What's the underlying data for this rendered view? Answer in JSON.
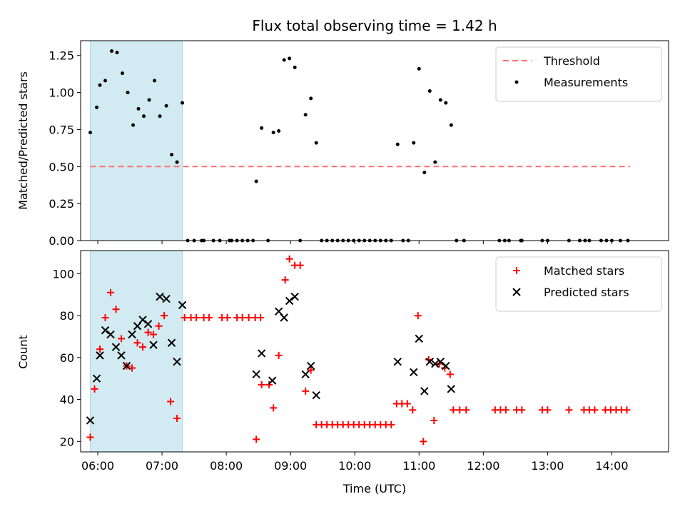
{
  "chart_data": {
    "title": "Flux total observing time = 1.42 h",
    "xlabel": "Time (UTC)",
    "x_ticks": [
      "06:00",
      "07:00",
      "08:00",
      "09:00",
      "10:00",
      "11:00",
      "12:00",
      "13:00",
      "14:00"
    ],
    "x_range": [
      "05:44",
      "14:53"
    ],
    "shaded_interval": [
      "05:53",
      "07:19"
    ],
    "shade_color": "#add8e6",
    "panels": [
      {
        "type": "scatter",
        "ylabel": "Matched/Predicted stars",
        "ylim": [
          0,
          1.35
        ],
        "y_ticks": [
          "0.00",
          "0.25",
          "0.50",
          "0.75",
          "1.00",
          "1.25"
        ],
        "legend_position": "upper right",
        "threshold": {
          "name": "Threshold",
          "value": 0.5,
          "x_start": "05:53",
          "x_end": "14:17",
          "color": "#ff7070"
        },
        "series": [
          {
            "name": "Measurements",
            "color": "#000000",
            "marker": "dot",
            "points": [
              [
                "05:53",
                0.73
              ],
              [
                "05:59",
                0.9
              ],
              [
                "06:02",
                1.05
              ],
              [
                "06:07",
                1.08
              ],
              [
                "06:13",
                1.28
              ],
              [
                "06:18",
                1.27
              ],
              [
                "06:23",
                1.13
              ],
              [
                "06:28",
                1.0
              ],
              [
                "06:33",
                0.78
              ],
              [
                "06:38",
                0.89
              ],
              [
                "06:43",
                0.84
              ],
              [
                "06:48",
                0.95
              ],
              [
                "06:53",
                1.08
              ],
              [
                "06:58",
                0.84
              ],
              [
                "07:04",
                0.91
              ],
              [
                "07:09",
                0.58
              ],
              [
                "07:14",
                0.53
              ],
              [
                "07:19",
                0.93
              ],
              [
                "07:24",
                0
              ],
              [
                "07:30",
                0
              ],
              [
                "07:37",
                0
              ],
              [
                "07:39",
                0
              ],
              [
                "07:48",
                0
              ],
              [
                "07:54",
                0
              ],
              [
                "08:03",
                0
              ],
              [
                "08:05",
                0
              ],
              [
                "08:10",
                0
              ],
              [
                "08:15",
                0
              ],
              [
                "08:20",
                0
              ],
              [
                "08:25",
                0
              ],
              [
                "08:28",
                0.4
              ],
              [
                "08:33",
                0.76
              ],
              [
                "08:39",
                0
              ],
              [
                "08:44",
                0.73
              ],
              [
                "08:49",
                0.74
              ],
              [
                "08:54",
                1.22
              ],
              [
                "08:59",
                1.23
              ],
              [
                "09:04",
                1.17
              ],
              [
                "09:09",
                0
              ],
              [
                "09:14",
                0.85
              ],
              [
                "09:19",
                0.96
              ],
              [
                "09:24",
                0.66
              ],
              [
                "09:29",
                0
              ],
              [
                "09:34",
                0
              ],
              [
                "09:39",
                0
              ],
              [
                "09:44",
                0
              ],
              [
                "09:49",
                0
              ],
              [
                "09:54",
                0
              ],
              [
                "09:59",
                0
              ],
              [
                "10:04",
                0
              ],
              [
                "10:09",
                0
              ],
              [
                "10:14",
                0
              ],
              [
                "10:19",
                0
              ],
              [
                "10:24",
                0
              ],
              [
                "10:29",
                0
              ],
              [
                "10:34",
                0
              ],
              [
                "10:40",
                0.65
              ],
              [
                "10:45",
                0
              ],
              [
                "10:50",
                0
              ],
              [
                "10:55",
                0.66
              ],
              [
                "11:00",
                1.16
              ],
              [
                "11:05",
                0.46
              ],
              [
                "11:10",
                1.01
              ],
              [
                "11:15",
                0.53
              ],
              [
                "11:20",
                0.95
              ],
              [
                "11:25",
                0.93
              ],
              [
                "11:30",
                0.78
              ],
              [
                "11:35",
                0
              ],
              [
                "11:42",
                0
              ],
              [
                "12:15",
                0
              ],
              [
                "12:20",
                0
              ],
              [
                "12:24",
                0
              ],
              [
                "12:35",
                0
              ],
              [
                "12:36",
                0
              ],
              [
                "12:55",
                0
              ],
              [
                "13:00",
                0
              ],
              [
                "13:20",
                0
              ],
              [
                "13:30",
                0
              ],
              [
                "13:35",
                0
              ],
              [
                "13:39",
                0
              ],
              [
                "13:50",
                0
              ],
              [
                "13:55",
                0
              ],
              [
                "14:00",
                0
              ],
              [
                "14:08",
                0
              ],
              [
                "14:15",
                0
              ]
            ]
          }
        ]
      },
      {
        "type": "scatter",
        "ylabel": "Count",
        "ylim": [
          15,
          111
        ],
        "y_ticks": [
          "20",
          "40",
          "60",
          "80",
          "100"
        ],
        "legend_position": "upper right",
        "series": [
          {
            "name": "Matched stars",
            "color": "#ff0000",
            "marker": "plus",
            "points": [
              [
                "05:53",
                22
              ],
              [
                "05:57",
                45
              ],
              [
                "06:02",
                64
              ],
              [
                "06:07",
                79
              ],
              [
                "06:12",
                91
              ],
              [
                "06:17",
                83
              ],
              [
                "06:22",
                69
              ],
              [
                "06:27",
                56
              ],
              [
                "06:32",
                55
              ],
              [
                "06:37",
                67
              ],
              [
                "06:42",
                65
              ],
              [
                "06:47",
                72
              ],
              [
                "06:52",
                71
              ],
              [
                "06:57",
                75
              ],
              [
                "07:02",
                80
              ],
              [
                "07:08",
                39
              ],
              [
                "07:14",
                31
              ],
              [
                "07:21",
                79
              ],
              [
                "07:27",
                79
              ],
              [
                "07:32",
                79
              ],
              [
                "07:39",
                79
              ],
              [
                "07:44",
                79
              ],
              [
                "07:56",
                79
              ],
              [
                "08:01",
                79
              ],
              [
                "08:10",
                79
              ],
              [
                "08:15",
                79
              ],
              [
                "08:21",
                79
              ],
              [
                "08:27",
                79
              ],
              [
                "08:32",
                79
              ],
              [
                "08:28",
                21
              ],
              [
                "08:33",
                47
              ],
              [
                "08:40",
                47
              ],
              [
                "08:44",
                36
              ],
              [
                "08:49",
                61
              ],
              [
                "08:55",
                97
              ],
              [
                "08:59",
                107
              ],
              [
                "09:04",
                104
              ],
              [
                "09:09",
                104
              ],
              [
                "09:14",
                44
              ],
              [
                "09:19",
                54
              ],
              [
                "09:24",
                28
              ],
              [
                "09:29",
                28
              ],
              [
                "09:34",
                28
              ],
              [
                "09:39",
                28
              ],
              [
                "09:44",
                28
              ],
              [
                "09:49",
                28
              ],
              [
                "09:54",
                28
              ],
              [
                "09:59",
                28
              ],
              [
                "10:04",
                28
              ],
              [
                "10:09",
                28
              ],
              [
                "10:14",
                28
              ],
              [
                "10:19",
                28
              ],
              [
                "10:24",
                28
              ],
              [
                "10:29",
                28
              ],
              [
                "10:34",
                28
              ],
              [
                "10:39",
                38
              ],
              [
                "10:44",
                38
              ],
              [
                "10:49",
                38
              ],
              [
                "10:54",
                35
              ],
              [
                "10:59",
                80
              ],
              [
                "11:04",
                20
              ],
              [
                "11:09",
                59
              ],
              [
                "11:14",
                30
              ],
              [
                "11:19",
                57
              ],
              [
                "11:24",
                55
              ],
              [
                "11:29",
                52
              ],
              [
                "11:32",
                35
              ],
              [
                "11:38",
                35
              ],
              [
                "11:44",
                35
              ],
              [
                "12:11",
                35
              ],
              [
                "12:16",
                35
              ],
              [
                "12:21",
                35
              ],
              [
                "12:31",
                35
              ],
              [
                "12:36",
                35
              ],
              [
                "12:55",
                35
              ],
              [
                "13:00",
                35
              ],
              [
                "13:20",
                35
              ],
              [
                "13:34",
                35
              ],
              [
                "13:39",
                35
              ],
              [
                "13:44",
                35
              ],
              [
                "13:54",
                35
              ],
              [
                "13:59",
                35
              ],
              [
                "14:04",
                35
              ],
              [
                "14:09",
                35
              ],
              [
                "14:14",
                35
              ]
            ]
          },
          {
            "name": "Predicted stars",
            "color": "#000000",
            "marker": "x",
            "points": [
              [
                "05:53",
                30
              ],
              [
                "05:59",
                50
              ],
              [
                "06:02",
                61
              ],
              [
                "06:07",
                73
              ],
              [
                "06:12",
                71
              ],
              [
                "06:17",
                65
              ],
              [
                "06:22",
                61
              ],
              [
                "06:27",
                56
              ],
              [
                "06:32",
                71
              ],
              [
                "06:37",
                75
              ],
              [
                "06:42",
                78
              ],
              [
                "06:47",
                76
              ],
              [
                "06:52",
                66
              ],
              [
                "06:58",
                89
              ],
              [
                "07:04",
                88
              ],
              [
                "07:09",
                67
              ],
              [
                "07:14",
                58
              ],
              [
                "07:19",
                85
              ],
              [
                "08:28",
                52
              ],
              [
                "08:33",
                62
              ],
              [
                "08:43",
                49
              ],
              [
                "08:49",
                82
              ],
              [
                "08:54",
                79
              ],
              [
                "08:59",
                87
              ],
              [
                "09:04",
                89
              ],
              [
                "09:14",
                52
              ],
              [
                "09:19",
                56
              ],
              [
                "09:24",
                42
              ],
              [
                "10:40",
                58
              ],
              [
                "10:55",
                53
              ],
              [
                "11:00",
                69
              ],
              [
                "11:05",
                44
              ],
              [
                "11:10",
                58
              ],
              [
                "11:15",
                57
              ],
              [
                "11:20",
                58
              ],
              [
                "11:25",
                56
              ],
              [
                "11:30",
                45
              ]
            ]
          }
        ]
      }
    ]
  }
}
